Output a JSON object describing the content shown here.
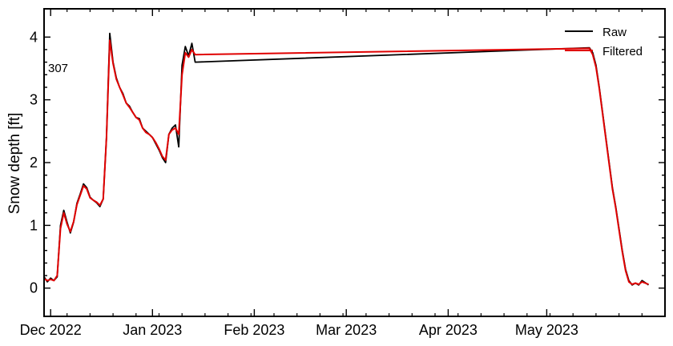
{
  "chart_data": {
    "type": "line",
    "title": "",
    "xlabel": "",
    "ylabel": "Snow depth [ft]",
    "xlim": [
      "2022-11-29",
      "2023-06-06"
    ],
    "ylim": [
      -0.45,
      4.45
    ],
    "y_ticks": [
      0,
      1,
      2,
      3,
      4
    ],
    "x_ticks": [
      {
        "date": "2022-12-01",
        "label": "Dec 2022"
      },
      {
        "date": "2023-01-01",
        "label": "Jan 2023"
      },
      {
        "date": "2023-02-01",
        "label": "Feb 2023"
      },
      {
        "date": "2023-03-01",
        "label": "Mar 2023"
      },
      {
        "date": "2023-04-01",
        "label": "Apr 2023"
      },
      {
        "date": "2023-05-01",
        "label": "May 2023"
      }
    ],
    "grid": false,
    "legend_position": "top-right",
    "annotation": "307",
    "series": [
      {
        "name": "Raw",
        "color": "#000000",
        "points": [
          [
            "2022-11-29",
            0.18
          ],
          [
            "2022-11-30",
            0.1
          ],
          [
            "2022-12-01",
            0.16
          ],
          [
            "2022-12-02",
            0.12
          ],
          [
            "2022-12-03",
            0.18
          ],
          [
            "2022-12-04",
            1.0
          ],
          [
            "2022-12-05",
            1.24
          ],
          [
            "2022-12-06",
            1.05
          ],
          [
            "2022-12-07",
            0.88
          ],
          [
            "2022-12-08",
            1.05
          ],
          [
            "2022-12-09",
            1.35
          ],
          [
            "2022-12-10",
            1.5
          ],
          [
            "2022-12-11",
            1.66
          ],
          [
            "2022-12-12",
            1.6
          ],
          [
            "2022-12-13",
            1.45
          ],
          [
            "2022-12-14",
            1.4
          ],
          [
            "2022-12-15",
            1.36
          ],
          [
            "2022-12-16",
            1.3
          ],
          [
            "2022-12-17",
            1.42
          ],
          [
            "2022-12-18",
            2.4
          ],
          [
            "2022-12-19",
            4.06
          ],
          [
            "2022-12-20",
            3.6
          ],
          [
            "2022-12-21",
            3.35
          ],
          [
            "2022-12-22",
            3.2
          ],
          [
            "2022-12-23",
            3.1
          ],
          [
            "2022-12-24",
            2.95
          ],
          [
            "2022-12-25",
            2.9
          ],
          [
            "2022-12-26",
            2.8
          ],
          [
            "2022-12-27",
            2.72
          ],
          [
            "2022-12-28",
            2.7
          ],
          [
            "2022-12-29",
            2.55
          ],
          [
            "2022-12-30",
            2.5
          ],
          [
            "2022-12-31",
            2.45
          ],
          [
            "2023-01-01",
            2.4
          ],
          [
            "2023-01-02",
            2.3
          ],
          [
            "2023-01-03",
            2.2
          ],
          [
            "2023-01-04",
            2.08
          ],
          [
            "2023-01-05",
            2.0
          ],
          [
            "2023-01-06",
            2.45
          ],
          [
            "2023-01-07",
            2.55
          ],
          [
            "2023-01-08",
            2.6
          ],
          [
            "2023-01-09",
            2.25
          ],
          [
            "2023-01-10",
            3.55
          ],
          [
            "2023-01-11",
            3.85
          ],
          [
            "2023-01-12",
            3.7
          ],
          [
            "2023-01-13",
            3.9
          ],
          [
            "2023-01-14",
            3.6
          ],
          [
            "2023-05-14",
            3.83
          ],
          [
            "2023-05-15",
            3.75
          ],
          [
            "2023-05-16",
            3.55
          ],
          [
            "2023-05-17",
            3.2
          ],
          [
            "2023-05-18",
            2.8
          ],
          [
            "2023-05-19",
            2.4
          ],
          [
            "2023-05-20",
            2.0
          ],
          [
            "2023-05-21",
            1.6
          ],
          [
            "2023-05-22",
            1.3
          ],
          [
            "2023-05-23",
            0.95
          ],
          [
            "2023-05-24",
            0.6
          ],
          [
            "2023-05-25",
            0.3
          ],
          [
            "2023-05-26",
            0.12
          ],
          [
            "2023-05-27",
            0.05
          ],
          [
            "2023-05-28",
            0.08
          ],
          [
            "2023-05-29",
            0.05
          ],
          [
            "2023-05-30",
            0.12
          ],
          [
            "2023-06-01",
            0.05
          ]
        ]
      },
      {
        "name": "Filtered",
        "color": "#e00000",
        "points": [
          [
            "2022-11-29",
            0.15
          ],
          [
            "2022-11-30",
            0.12
          ],
          [
            "2022-12-01",
            0.14
          ],
          [
            "2022-12-02",
            0.12
          ],
          [
            "2022-12-03",
            0.2
          ],
          [
            "2022-12-04",
            0.95
          ],
          [
            "2022-12-05",
            1.2
          ],
          [
            "2022-12-06",
            1.02
          ],
          [
            "2022-12-07",
            0.9
          ],
          [
            "2022-12-08",
            1.06
          ],
          [
            "2022-12-09",
            1.33
          ],
          [
            "2022-12-10",
            1.48
          ],
          [
            "2022-12-11",
            1.63
          ],
          [
            "2022-12-12",
            1.58
          ],
          [
            "2022-12-13",
            1.44
          ],
          [
            "2022-12-14",
            1.4
          ],
          [
            "2022-12-15",
            1.37
          ],
          [
            "2022-12-16",
            1.32
          ],
          [
            "2022-12-17",
            1.42
          ],
          [
            "2022-12-18",
            2.4
          ],
          [
            "2022-12-19",
            3.95
          ],
          [
            "2022-12-20",
            3.58
          ],
          [
            "2022-12-21",
            3.33
          ],
          [
            "2022-12-22",
            3.2
          ],
          [
            "2022-12-23",
            3.08
          ],
          [
            "2022-12-24",
            2.95
          ],
          [
            "2022-12-25",
            2.88
          ],
          [
            "2022-12-26",
            2.8
          ],
          [
            "2022-12-27",
            2.72
          ],
          [
            "2022-12-28",
            2.68
          ],
          [
            "2022-12-29",
            2.55
          ],
          [
            "2022-12-30",
            2.48
          ],
          [
            "2022-12-31",
            2.45
          ],
          [
            "2023-01-01",
            2.4
          ],
          [
            "2023-01-02",
            2.32
          ],
          [
            "2023-01-03",
            2.22
          ],
          [
            "2023-01-04",
            2.1
          ],
          [
            "2023-01-05",
            2.04
          ],
          [
            "2023-01-06",
            2.45
          ],
          [
            "2023-01-07",
            2.52
          ],
          [
            "2023-01-08",
            2.55
          ],
          [
            "2023-01-09",
            2.45
          ],
          [
            "2023-01-10",
            3.4
          ],
          [
            "2023-01-11",
            3.75
          ],
          [
            "2023-01-12",
            3.68
          ],
          [
            "2023-01-13",
            3.8
          ],
          [
            "2023-01-14",
            3.72
          ],
          [
            "2023-05-14",
            3.82
          ],
          [
            "2023-05-15",
            3.72
          ],
          [
            "2023-05-16",
            3.52
          ],
          [
            "2023-05-17",
            3.18
          ],
          [
            "2023-05-18",
            2.78
          ],
          [
            "2023-05-19",
            2.38
          ],
          [
            "2023-05-20",
            1.98
          ],
          [
            "2023-05-21",
            1.58
          ],
          [
            "2023-05-22",
            1.28
          ],
          [
            "2023-05-23",
            0.93
          ],
          [
            "2023-05-24",
            0.58
          ],
          [
            "2023-05-25",
            0.28
          ],
          [
            "2023-05-26",
            0.1
          ],
          [
            "2023-05-27",
            0.06
          ],
          [
            "2023-05-28",
            0.08
          ],
          [
            "2023-05-29",
            0.06
          ],
          [
            "2023-05-30",
            0.1
          ],
          [
            "2023-06-01",
            0.06
          ]
        ]
      }
    ]
  }
}
